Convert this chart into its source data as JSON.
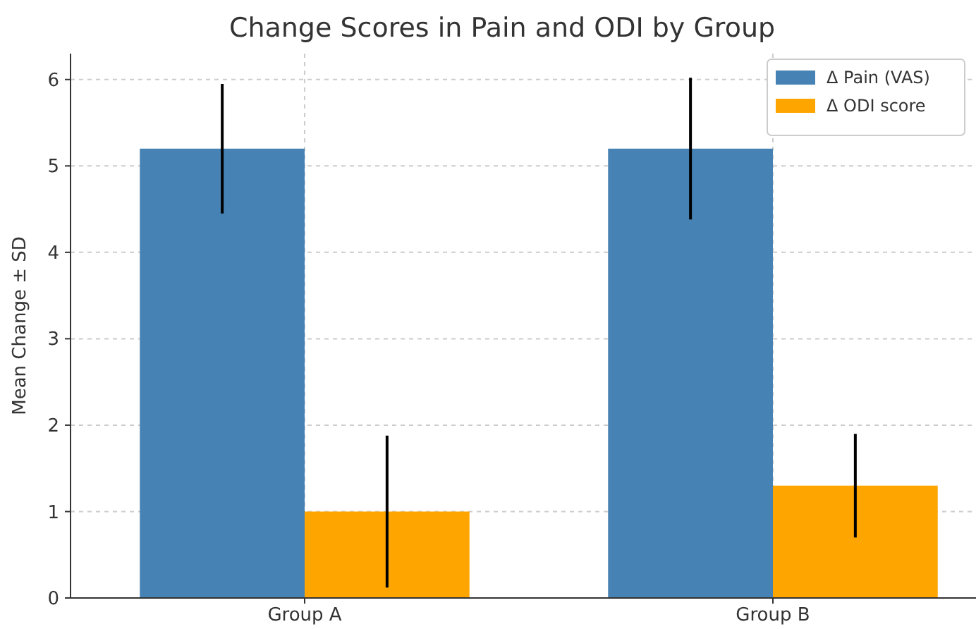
{
  "chart_data": {
    "type": "bar",
    "title": "Change Scores in Pain and ODI by Group",
    "ylabel": "Mean Change ± SD",
    "categories": [
      "Group A",
      "Group B"
    ],
    "series": [
      {
        "name": "Δ Pain (VAS)",
        "color": "#4682b4",
        "values": [
          5.2,
          5.2
        ],
        "errors": [
          0.75,
          0.82
        ]
      },
      {
        "name": "Δ ODI score",
        "color": "#ffa500",
        "values": [
          1.0,
          1.3
        ],
        "errors": [
          0.88,
          0.6
        ]
      }
    ],
    "ylim": [
      0,
      6.3
    ],
    "yticks": [
      0,
      1,
      2,
      3,
      4,
      5,
      6
    ],
    "grid": true,
    "legend": "top right"
  }
}
